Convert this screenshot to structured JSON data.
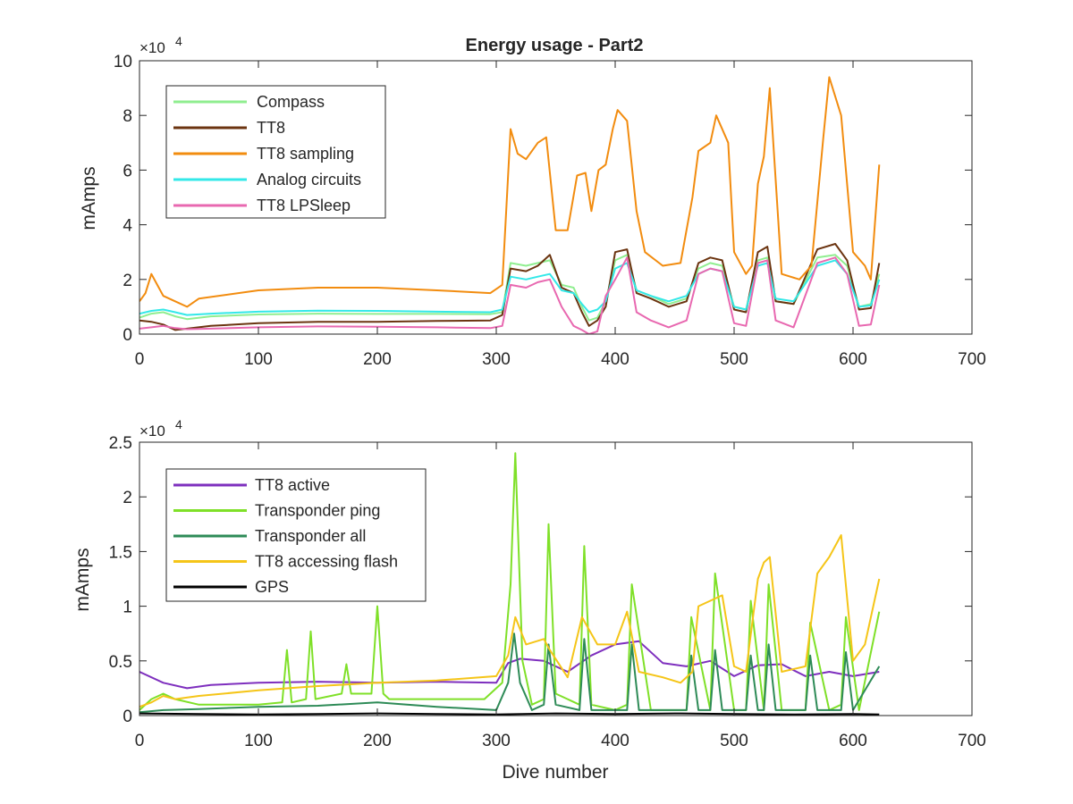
{
  "chart_data": [
    {
      "type": "line",
      "title": "Energy usage - Part2",
      "xlabel": "",
      "ylabel": "mAmps",
      "y_exponent_label": "×10",
      "y_exponent": "4",
      "xlim": [
        0,
        700
      ],
      "ylim": [
        0,
        100000
      ],
      "x_ticks": [
        0,
        100,
        200,
        300,
        400,
        500,
        600,
        700
      ],
      "y_ticks": [
        0,
        20000,
        40000,
        60000,
        80000,
        100000
      ],
      "y_tick_labels": [
        "0",
        "2",
        "4",
        "6",
        "8",
        "10"
      ],
      "grid": false,
      "legend_position": "top-left",
      "series": [
        {
          "name": "Compass",
          "color": "#90EE90",
          "x": [
            0,
            10,
            20,
            30,
            40,
            60,
            100,
            150,
            200,
            250,
            295,
            305,
            312,
            325,
            335,
            345,
            355,
            365,
            372,
            378,
            385,
            392,
            400,
            410,
            418,
            430,
            445,
            460,
            470,
            480,
            490,
            500,
            510,
            520,
            528,
            535,
            550,
            570,
            585,
            595,
            605,
            615,
            622
          ],
          "y": [
            6000,
            7500,
            8000,
            6500,
            5500,
            6500,
            7200,
            7500,
            7400,
            7400,
            7300,
            8000,
            26000,
            25000,
            26000,
            27000,
            18000,
            17000,
            10000,
            5000,
            6000,
            12000,
            27000,
            29000,
            16000,
            14000,
            11000,
            13000,
            24000,
            26000,
            25000,
            10000,
            9000,
            27000,
            28000,
            12000,
            11000,
            28000,
            29000,
            25000,
            10000,
            11000,
            22000
          ]
        },
        {
          "name": "TT8",
          "color": "#6B3410",
          "x": [
            0,
            10,
            20,
            30,
            40,
            60,
            100,
            150,
            200,
            250,
            295,
            305,
            312,
            325,
            335,
            345,
            355,
            365,
            372,
            378,
            385,
            392,
            400,
            410,
            418,
            430,
            445,
            460,
            470,
            480,
            490,
            500,
            510,
            520,
            528,
            535,
            550,
            570,
            585,
            595,
            605,
            615,
            622
          ],
          "y": [
            5000,
            4500,
            3500,
            1500,
            2000,
            3000,
            4000,
            4500,
            4500,
            4800,
            5000,
            7000,
            24000,
            23000,
            25000,
            29000,
            17000,
            15000,
            8000,
            3000,
            5000,
            10000,
            30000,
            31000,
            15000,
            13000,
            10000,
            12000,
            26000,
            28000,
            27000,
            9000,
            8000,
            30000,
            32000,
            12000,
            11000,
            31000,
            33000,
            27000,
            9000,
            9500,
            26000
          ]
        },
        {
          "name": "TT8 sampling",
          "color": "#F28C0F",
          "x": [
            0,
            5,
            10,
            15,
            20,
            30,
            40,
            50,
            100,
            150,
            200,
            250,
            295,
            305,
            312,
            318,
            325,
            335,
            342,
            350,
            360,
            368,
            375,
            380,
            386,
            392,
            398,
            402,
            410,
            418,
            425,
            440,
            455,
            465,
            470,
            480,
            485,
            495,
            500,
            510,
            515,
            520,
            525,
            530,
            540,
            555,
            565,
            575,
            580,
            590,
            600,
            610,
            615,
            622
          ],
          "y": [
            12000,
            15000,
            22000,
            18000,
            14000,
            12000,
            10000,
            13000,
            16000,
            17000,
            17000,
            16000,
            15000,
            18000,
            75000,
            66000,
            64000,
            70000,
            72000,
            38000,
            38000,
            58000,
            59000,
            45000,
            60000,
            62000,
            75000,
            82000,
            78000,
            45000,
            30000,
            25000,
            26000,
            50000,
            67000,
            70000,
            80000,
            70000,
            30000,
            22000,
            25000,
            55000,
            65000,
            90000,
            22000,
            20000,
            25000,
            72000,
            94000,
            80000,
            30000,
            25000,
            20000,
            62000
          ]
        },
        {
          "name": "Analog circuits",
          "color": "#33E8E8",
          "x": [
            0,
            10,
            20,
            30,
            40,
            60,
            100,
            150,
            200,
            250,
            295,
            305,
            312,
            325,
            335,
            345,
            355,
            365,
            372,
            378,
            385,
            392,
            400,
            410,
            418,
            430,
            445,
            460,
            470,
            480,
            490,
            500,
            510,
            520,
            528,
            535,
            550,
            570,
            585,
            595,
            605,
            615,
            622
          ],
          "y": [
            7500,
            8500,
            9000,
            8000,
            7000,
            7500,
            8200,
            8600,
            8500,
            8200,
            8000,
            9000,
            21000,
            20000,
            21000,
            22000,
            16000,
            15000,
            11000,
            8000,
            9000,
            12000,
            24000,
            26000,
            16000,
            14000,
            12000,
            14000,
            22000,
            24000,
            23000,
            10000,
            9000,
            25000,
            26000,
            13000,
            12000,
            25000,
            27000,
            22000,
            10000,
            10500,
            20000
          ]
        },
        {
          "name": "TT8 LPSleep",
          "color": "#E868B0",
          "x": [
            0,
            10,
            20,
            30,
            40,
            60,
            100,
            150,
            200,
            250,
            295,
            305,
            312,
            325,
            335,
            345,
            355,
            365,
            372,
            378,
            385,
            392,
            400,
            410,
            418,
            430,
            445,
            460,
            470,
            480,
            490,
            500,
            510,
            520,
            528,
            535,
            550,
            570,
            585,
            595,
            605,
            615,
            622
          ],
          "y": [
            2000,
            2500,
            3000,
            2200,
            1800,
            2000,
            2500,
            2800,
            2700,
            2500,
            2200,
            3000,
            18000,
            17000,
            19000,
            20000,
            10000,
            3000,
            1500,
            0,
            1000,
            14000,
            20000,
            28000,
            8000,
            5000,
            2500,
            5000,
            22000,
            24000,
            23000,
            4000,
            3000,
            26000,
            27000,
            5000,
            2500,
            26000,
            28000,
            22000,
            3000,
            3500,
            18000
          ]
        }
      ]
    },
    {
      "type": "line",
      "title": "",
      "xlabel": "Dive number",
      "ylabel": "mAmps",
      "y_exponent_label": "×10",
      "y_exponent": "4",
      "xlim": [
        0,
        700
      ],
      "ylim": [
        0,
        25000
      ],
      "x_ticks": [
        0,
        100,
        200,
        300,
        400,
        500,
        600,
        700
      ],
      "y_ticks": [
        0,
        5000,
        10000,
        15000,
        20000,
        25000
      ],
      "y_tick_labels": [
        "0",
        "0.5",
        "1",
        "1.5",
        "2",
        "2.5"
      ],
      "grid": false,
      "legend_position": "top-left",
      "series": [
        {
          "name": "TT8 active",
          "color": "#7E2FBE",
          "x": [
            0,
            20,
            40,
            60,
            100,
            150,
            200,
            250,
            300,
            310,
            320,
            340,
            360,
            380,
            400,
            420,
            440,
            460,
            480,
            500,
            520,
            540,
            560,
            580,
            600,
            622
          ],
          "y": [
            4000,
            3000,
            2500,
            2800,
            3000,
            3100,
            3000,
            3100,
            3000,
            4800,
            5200,
            5000,
            4000,
            5500,
            6500,
            6800,
            4800,
            4500,
            5000,
            3600,
            4600,
            4700,
            3600,
            4000,
            3600,
            4000
          ]
        },
        {
          "name": "Transponder ping",
          "color": "#7FE028",
          "x": [
            0,
            10,
            20,
            30,
            50,
            100,
            120,
            124,
            128,
            140,
            144,
            148,
            170,
            174,
            178,
            195,
            200,
            205,
            210,
            250,
            290,
            305,
            312,
            316,
            322,
            330,
            340,
            344,
            350,
            370,
            374,
            380,
            400,
            410,
            414,
            430,
            460,
            464,
            480,
            484,
            500,
            510,
            514,
            525,
            529,
            540,
            560,
            564,
            580,
            590,
            594,
            605,
            622
          ],
          "y": [
            500,
            1500,
            2000,
            1500,
            1000,
            1000,
            1200,
            6000,
            1200,
            1500,
            7700,
            1500,
            2000,
            4700,
            2000,
            2000,
            10000,
            2000,
            1500,
            1500,
            1500,
            3000,
            12000,
            24000,
            5000,
            1000,
            1500,
            17500,
            2000,
            1000,
            15500,
            1000,
            500,
            1000,
            12000,
            500,
            500,
            9000,
            500,
            13000,
            500,
            500,
            10500,
            500,
            12000,
            500,
            500,
            8500,
            500,
            1000,
            9000,
            500,
            9500
          ]
        },
        {
          "name": "Transponder all",
          "color": "#2E8B57",
          "x": [
            0,
            20,
            50,
            100,
            150,
            200,
            250,
            300,
            310,
            315,
            320,
            330,
            340,
            344,
            350,
            370,
            374,
            380,
            410,
            414,
            420,
            460,
            464,
            470,
            480,
            484,
            490,
            510,
            514,
            520,
            525,
            529,
            535,
            560,
            564,
            570,
            590,
            594,
            600,
            622
          ],
          "y": [
            300,
            500,
            600,
            800,
            900,
            1200,
            800,
            500,
            3000,
            7500,
            3000,
            500,
            1000,
            6500,
            1000,
            500,
            7000,
            500,
            500,
            6500,
            500,
            500,
            5500,
            500,
            500,
            6000,
            500,
            500,
            5500,
            500,
            500,
            6500,
            500,
            500,
            5500,
            500,
            500,
            5800,
            500,
            4500
          ]
        },
        {
          "name": "TT8 accessing flash",
          "color": "#F5C518",
          "x": [
            0,
            10,
            20,
            30,
            50,
            100,
            150,
            200,
            250,
            300,
            310,
            316,
            325,
            340,
            345,
            360,
            372,
            385,
            400,
            410,
            420,
            440,
            455,
            465,
            470,
            480,
            490,
            500,
            510,
            520,
            525,
            530,
            540,
            560,
            570,
            580,
            590,
            600,
            610,
            622
          ],
          "y": [
            800,
            1200,
            1800,
            1500,
            1800,
            2300,
            2700,
            3000,
            3200,
            3600,
            5500,
            9000,
            6500,
            7000,
            6000,
            3500,
            9000,
            6500,
            6500,
            9500,
            4000,
            3500,
            3000,
            4000,
            10000,
            10500,
            11000,
            4500,
            4000,
            12500,
            14000,
            14500,
            4000,
            4500,
            13000,
            14500,
            16500,
            5000,
            6500,
            12500
          ]
        },
        {
          "name": "GPS",
          "color": "#000000",
          "x": [
            0,
            50,
            100,
            150,
            200,
            250,
            300,
            350,
            400,
            450,
            500,
            550,
            600,
            622
          ],
          "y": [
            200,
            150,
            100,
            150,
            200,
            150,
            100,
            200,
            150,
            200,
            150,
            100,
            150,
            100
          ]
        }
      ]
    }
  ]
}
